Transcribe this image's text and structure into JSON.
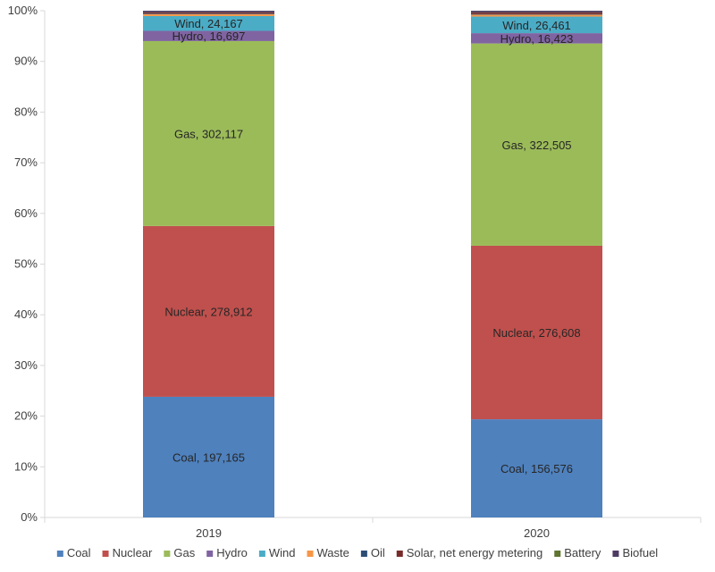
{
  "chart_data": {
    "type": "bar",
    "stacked": true,
    "normalized": true,
    "categories": [
      "2019",
      "2020"
    ],
    "series": [
      {
        "name": "Coal",
        "color": "#4f81bd",
        "values": [
          197165,
          156576
        ]
      },
      {
        "name": "Nuclear",
        "color": "#c0504d",
        "values": [
          278912,
          276608
        ]
      },
      {
        "name": "Gas",
        "color": "#9bbb59",
        "values": [
          302117,
          322505
        ]
      },
      {
        "name": "Hydro",
        "color": "#8064a2",
        "values": [
          16697,
          16423
        ]
      },
      {
        "name": "Wind",
        "color": "#4bacc6",
        "values": [
          24167,
          26461
        ]
      },
      {
        "name": "Waste",
        "color": "#f79646",
        "values": [
          3000,
          3000
        ]
      },
      {
        "name": "Oil",
        "color": "#2c4d75",
        "values": [
          1000,
          1000
        ]
      },
      {
        "name": "Solar, net energy metering",
        "color": "#772c2a",
        "values": [
          2000,
          2500
        ]
      },
      {
        "name": "Battery",
        "color": "#5f7530",
        "values": [
          200,
          300
        ]
      },
      {
        "name": "Biofuel",
        "color": "#4d3b62",
        "values": [
          2500,
          2500
        ]
      }
    ],
    "data_labels": [
      {
        "category": "2019",
        "series": "Coal",
        "text": "Coal, 197,165"
      },
      {
        "category": "2019",
        "series": "Nuclear",
        "text": "Nuclear, 278,912"
      },
      {
        "category": "2019",
        "series": "Gas",
        "text": "Gas, 302,117"
      },
      {
        "category": "2019",
        "series": "Hydro",
        "text": "Hydro, 16,697"
      },
      {
        "category": "2019",
        "series": "Wind",
        "text": "Wind, 24,167"
      },
      {
        "category": "2020",
        "series": "Coal",
        "text": "Coal, 156,576"
      },
      {
        "category": "2020",
        "series": "Nuclear",
        "text": "Nuclear, 276,608"
      },
      {
        "category": "2020",
        "series": "Gas",
        "text": "Gas, 322,505"
      },
      {
        "category": "2020",
        "series": "Hydro",
        "text": "Hydro, 16,423"
      },
      {
        "category": "2020",
        "series": "Wind",
        "text": "Wind, 26,461"
      }
    ],
    "y_ticks": [
      "0%",
      "10%",
      "20%",
      "30%",
      "40%",
      "50%",
      "60%",
      "70%",
      "80%",
      "90%",
      "100%"
    ],
    "ylim": [
      0,
      100
    ],
    "title": "",
    "xlabel": "",
    "ylabel": "",
    "grid": false,
    "legend_position": "bottom"
  }
}
